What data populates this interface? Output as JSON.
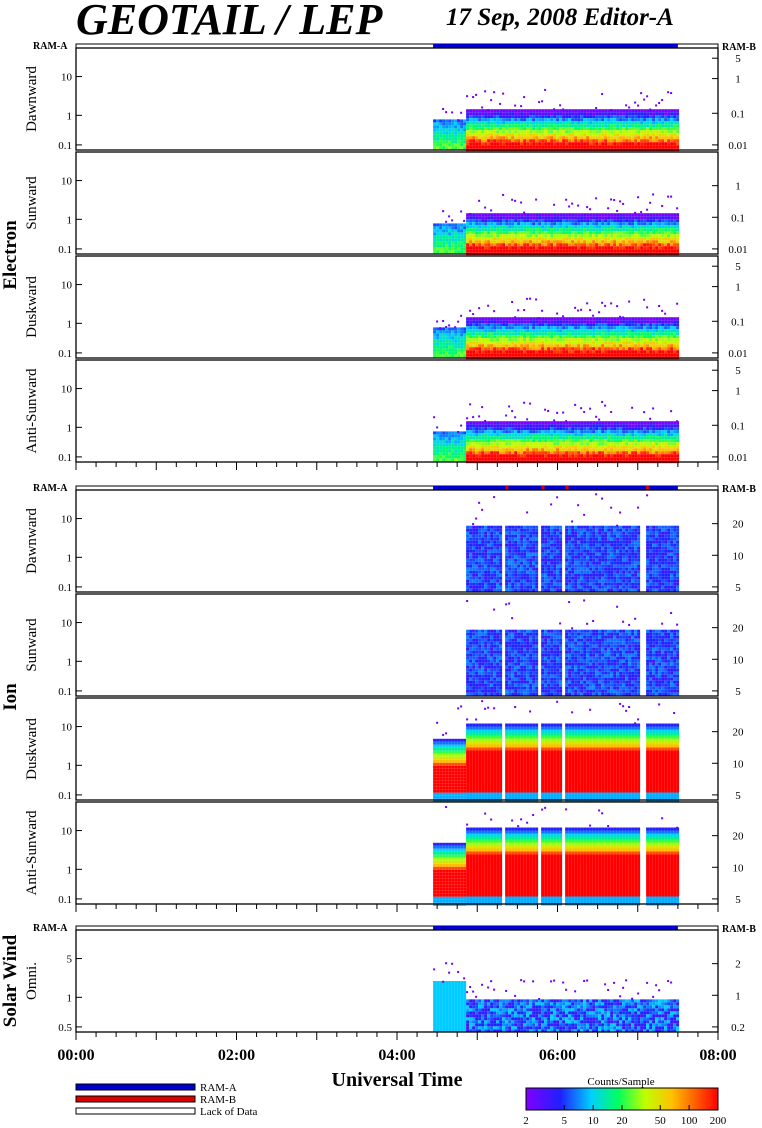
{
  "header": {
    "title": "GEOTAIL / LEP",
    "subtitle": "17 Sep, 2008   Editor-A"
  },
  "chart_data": {
    "type": "heatmap",
    "x_axis": {
      "label": "Universal Time",
      "range_hours": [
        0,
        8
      ],
      "tick_labels": [
        "00:00",
        "02:00",
        "04:00",
        "06:00",
        "08:00"
      ]
    },
    "ram_labels": {
      "left": "RAM-A",
      "right": "RAM-B"
    },
    "groups": [
      {
        "name": "Electron",
        "ram_bar": {
          "ram_a": [
            4.45,
            7.5
          ],
          "ram_b_marks": []
        },
        "panels": [
          {
            "label": "Dawnward",
            "left_ticks": [
              "10",
              "1",
              "0.1"
            ],
            "right_ticks": [
              "5",
              "1",
              "0.1",
              "0.01"
            ]
          },
          {
            "label": "Sunward",
            "left_ticks": [
              "10",
              "1",
              "0.1"
            ],
            "right_ticks": [
              "1",
              "0.1",
              "0.01"
            ]
          },
          {
            "label": "Duskward",
            "left_ticks": [
              "10",
              "1",
              "0.1"
            ],
            "right_ticks": [
              "5",
              "1",
              "0.1",
              "0.01"
            ]
          },
          {
            "label": "Anti-Sunward",
            "left_ticks": [
              "10",
              "1",
              "0.1"
            ],
            "right_ticks": [
              "5",
              "1",
              "0.1",
              "0.01"
            ]
          }
        ]
      },
      {
        "name": "Ion",
        "ram_bar": {
          "ram_a": [
            4.45,
            7.5
          ],
          "ram_b_marks": [
            5.35,
            5.8,
            6.1,
            7.1
          ]
        },
        "panels": [
          {
            "label": "Dawnward",
            "left_ticks": [
              "10",
              "1",
              "0.1"
            ],
            "right_ticks": [
              "20",
              "10",
              "5"
            ]
          },
          {
            "label": "Sunward",
            "left_ticks": [
              "10",
              "1",
              "0.1"
            ],
            "right_ticks": [
              "20",
              "10",
              "5"
            ]
          },
          {
            "label": "Duskward",
            "left_ticks": [
              "10",
              "1",
              "0.1"
            ],
            "right_ticks": [
              "20",
              "10",
              "5"
            ]
          },
          {
            "label": "Anti-Sunward",
            "left_ticks": [
              "10",
              "1",
              "0.1"
            ],
            "right_ticks": [
              "20",
              "10",
              "5"
            ]
          }
        ]
      },
      {
        "name": "Solar Wind",
        "ram_bar": {
          "ram_a": [
            4.45,
            7.5
          ],
          "ram_b_marks": []
        },
        "panels": [
          {
            "label": "Omni.",
            "left_ticks": [
              "5",
              "1",
              "0.5"
            ],
            "right_ticks": [
              "2",
              "1",
              "0.2"
            ]
          }
        ]
      }
    ],
    "legend": {
      "entries": [
        {
          "label": "RAM-A",
          "color": "#0000cc"
        },
        {
          "label": "RAM-B",
          "color": "#dd0000"
        },
        {
          "label": "Lack of Data",
          "color": "#ffffff"
        }
      ]
    },
    "colorbar": {
      "title": "Counts/Sample",
      "tick_labels": [
        "2",
        "5",
        "10",
        "20",
        "50",
        "100",
        "200"
      ],
      "scale": "log"
    }
  }
}
